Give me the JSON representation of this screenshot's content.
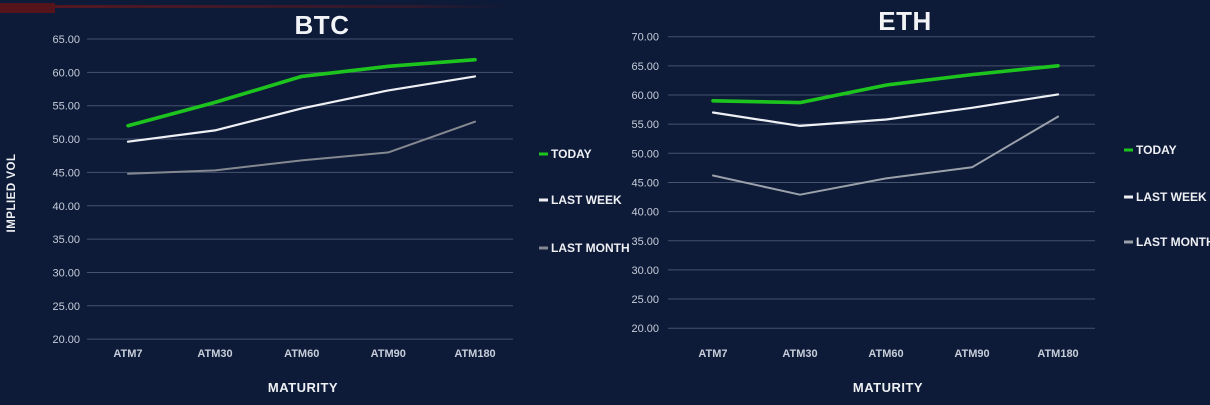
{
  "page": {
    "background": "#0d1a38",
    "gridline_color": "#45536e",
    "tick_text_color": "#c7cdd9",
    "label_text_color": "#eef0f3",
    "top_left_fragment_color": "#551419"
  },
  "chart_data": [
    {
      "type": "line",
      "id": "btc",
      "title": "BTC",
      "xlabel": "MATURITY",
      "ylabel": "IMPLIED VOL",
      "categories": [
        "ATM7",
        "ATM30",
        "ATM60",
        "ATM90",
        "ATM180"
      ],
      "y_tick_values": [
        65,
        60,
        55,
        50,
        45,
        40,
        35,
        30,
        25,
        20
      ],
      "y_tick_labels": [
        "65.00",
        "60.00",
        "55.00",
        "50.00",
        "45.00",
        "40.00",
        "35.00",
        "30.00",
        "25.00",
        "20.00"
      ],
      "ylim": [
        20,
        65
      ],
      "grid": true,
      "legend_position": "right",
      "series": [
        {
          "name": "TODAY",
          "color": "#1ec41e",
          "width": 3.6,
          "values": [
            52.0,
            55.5,
            59.4,
            60.9,
            61.9
          ]
        },
        {
          "name": "LAST WEEK",
          "color": "#eef0f3",
          "width": 2.2,
          "values": [
            49.6,
            51.3,
            54.6,
            57.3,
            59.4
          ]
        },
        {
          "name": "LAST MONTH",
          "color": "#84888f",
          "width": 2.0,
          "values": [
            44.8,
            45.3,
            46.8,
            48.0,
            52.6
          ]
        }
      ]
    },
    {
      "type": "line",
      "id": "eth",
      "title": "ETH",
      "xlabel": "MATURITY",
      "ylabel": "",
      "categories": [
        "ATM7",
        "ATM30",
        "ATM60",
        "ATM90",
        "ATM180"
      ],
      "y_tick_values": [
        70,
        65,
        60,
        55,
        50,
        45,
        40,
        35,
        30,
        25,
        20
      ],
      "y_tick_labels": [
        "70.00",
        "65.00",
        "60.00",
        "55.00",
        "50.00",
        "45.00",
        "40.00",
        "35.00",
        "30.00",
        "25.00",
        "20.00"
      ],
      "ylim": [
        20,
        70
      ],
      "grid": true,
      "legend_position": "right",
      "series": [
        {
          "name": "TODAY",
          "color": "#1ec41e",
          "width": 3.6,
          "values": [
            59.0,
            58.7,
            61.7,
            63.5,
            65.0
          ]
        },
        {
          "name": "LAST WEEK",
          "color": "#eef0f3",
          "width": 2.2,
          "values": [
            57.0,
            54.7,
            55.8,
            57.8,
            60.1
          ]
        },
        {
          "name": "LAST MONTH",
          "color": "#9ba1aa",
          "width": 2.0,
          "values": [
            46.2,
            42.9,
            45.7,
            47.6,
            56.3
          ]
        }
      ]
    }
  ]
}
